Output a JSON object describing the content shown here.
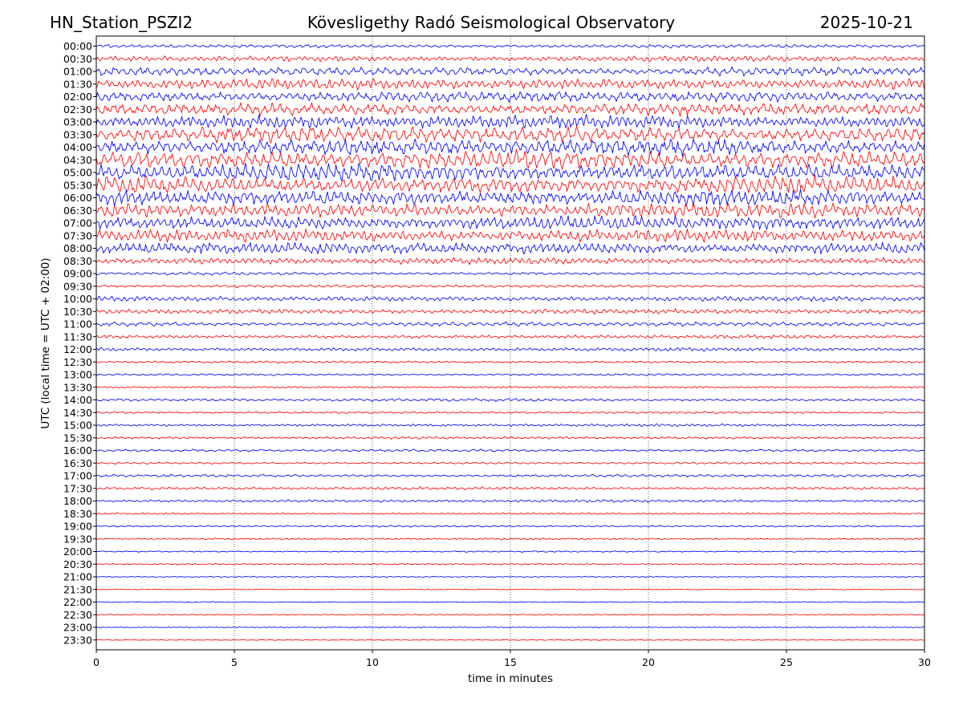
{
  "header": {
    "station": "HN_Station_PSZI2",
    "observatory": "Kövesligethy Radó Seismological Observatory",
    "date": "2025-10-21"
  },
  "colors": {
    "blue": "#0000ff",
    "red": "#ff0000",
    "axis": "#000000",
    "background": "#ffffff"
  },
  "chart_data": {
    "type": "line",
    "title": "Kövesligethy Radó Seismological Observatory",
    "xlabel": "time in minutes",
    "ylabel": "UTC (local time = UTC + 02:00)",
    "xlim": [
      0,
      30
    ],
    "xticks": [
      0,
      5,
      10,
      15,
      20,
      25,
      30
    ],
    "grid": "vertical dotted at x ticks",
    "trace_colors": [
      "#0000ff",
      "#ff0000"
    ],
    "rows": [
      {
        "label": "00:00",
        "color": "blue",
        "amplitude": 0.25
      },
      {
        "label": "00:30",
        "color": "red",
        "amplitude": 0.4
      },
      {
        "label": "01:00",
        "color": "blue",
        "amplitude": 0.6
      },
      {
        "label": "01:30",
        "color": "red",
        "amplitude": 0.75
      },
      {
        "label": "02:00",
        "color": "blue",
        "amplitude": 0.75
      },
      {
        "label": "02:30",
        "color": "red",
        "amplitude": 0.85
      },
      {
        "label": "03:00",
        "color": "blue",
        "amplitude": 0.95
      },
      {
        "label": "03:30",
        "color": "red",
        "amplitude": 1.1
      },
      {
        "label": "04:00",
        "color": "blue",
        "amplitude": 1.15
      },
      {
        "label": "04:30",
        "color": "red",
        "amplitude": 1.2
      },
      {
        "label": "05:00",
        "color": "blue",
        "amplitude": 1.2
      },
      {
        "label": "05:30",
        "color": "red",
        "amplitude": 1.15
      },
      {
        "label": "06:00",
        "color": "blue",
        "amplitude": 1.1
      },
      {
        "label": "06:30",
        "color": "red",
        "amplitude": 1.0
      },
      {
        "label": "07:00",
        "color": "blue",
        "amplitude": 0.95
      },
      {
        "label": "07:30",
        "color": "red",
        "amplitude": 0.9
      },
      {
        "label": "08:00",
        "color": "blue",
        "amplitude": 0.8
      },
      {
        "label": "08:30",
        "color": "red",
        "amplitude": 0.45
      },
      {
        "label": "09:00",
        "color": "blue",
        "amplitude": 0.2
      },
      {
        "label": "09:30",
        "color": "red",
        "amplitude": 0.2
      },
      {
        "label": "10:00",
        "color": "blue",
        "amplitude": 0.35
      },
      {
        "label": "10:30",
        "color": "red",
        "amplitude": 0.35
      },
      {
        "label": "11:00",
        "color": "blue",
        "amplitude": 0.3
      },
      {
        "label": "11:30",
        "color": "red",
        "amplitude": 0.25
      },
      {
        "label": "12:00",
        "color": "blue",
        "amplitude": 0.25
      },
      {
        "label": "12:30",
        "color": "red",
        "amplitude": 0.15
      },
      {
        "label": "13:00",
        "color": "blue",
        "amplitude": 0.15
      },
      {
        "label": "13:30",
        "color": "red",
        "amplitude": 0.15
      },
      {
        "label": "14:00",
        "color": "blue",
        "amplitude": 0.2
      },
      {
        "label": "14:30",
        "color": "red",
        "amplitude": 0.15
      },
      {
        "label": "15:00",
        "color": "blue",
        "amplitude": 0.18
      },
      {
        "label": "15:30",
        "color": "red",
        "amplitude": 0.18
      },
      {
        "label": "16:00",
        "color": "blue",
        "amplitude": 0.18
      },
      {
        "label": "16:30",
        "color": "red",
        "amplitude": 0.15
      },
      {
        "label": "17:00",
        "color": "blue",
        "amplitude": 0.2
      },
      {
        "label": "17:30",
        "color": "red",
        "amplitude": 0.2
      },
      {
        "label": "18:00",
        "color": "blue",
        "amplitude": 0.18
      },
      {
        "label": "18:30",
        "color": "red",
        "amplitude": 0.12
      },
      {
        "label": "19:00",
        "color": "blue",
        "amplitude": 0.12
      },
      {
        "label": "19:30",
        "color": "red",
        "amplitude": 0.12
      },
      {
        "label": "20:00",
        "color": "blue",
        "amplitude": 0.1
      },
      {
        "label": "20:30",
        "color": "red",
        "amplitude": 0.1
      },
      {
        "label": "21:00",
        "color": "blue",
        "amplitude": 0.08
      },
      {
        "label": "21:30",
        "color": "red",
        "amplitude": 0.07
      },
      {
        "label": "22:00",
        "color": "blue",
        "amplitude": 0.07
      },
      {
        "label": "22:30",
        "color": "red",
        "amplitude": 0.08
      },
      {
        "label": "23:00",
        "color": "blue",
        "amplitude": 0.07
      },
      {
        "label": "23:30",
        "color": "red",
        "amplitude": 0.06
      }
    ]
  }
}
